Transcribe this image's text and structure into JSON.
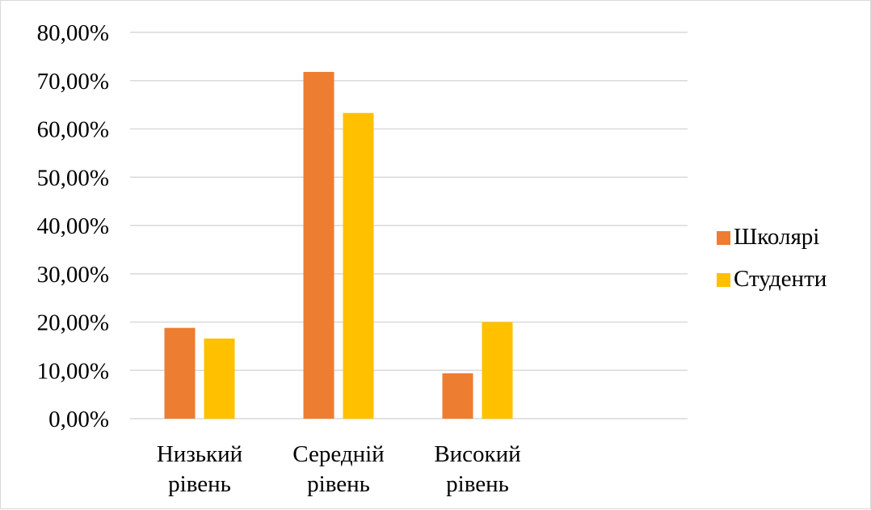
{
  "chart_data": {
    "type": "bar",
    "categories": [
      [
        "Низький",
        "рівень"
      ],
      [
        "Середній",
        "рівень"
      ],
      [
        "Високий",
        "рівень"
      ]
    ],
    "series": [
      {
        "name": "Школярі",
        "values": [
          18.8,
          71.8,
          9.4
        ],
        "color": "#ED7D31"
      },
      {
        "name": "Студенти",
        "values": [
          16.6,
          63.3,
          20.0
        ],
        "color": "#FFC000"
      }
    ],
    "ylim": [
      0,
      80
    ],
    "yticks": [
      "0,00%",
      "10,00%",
      "20,00%",
      "30,00%",
      "40,00%",
      "50,00%",
      "60,00%",
      "70,00%",
      "80,00%"
    ],
    "grid": true,
    "gridline_color": "#d9d9d9",
    "legend_position": "right",
    "title": "",
    "xlabel": "",
    "ylabel": ""
  }
}
